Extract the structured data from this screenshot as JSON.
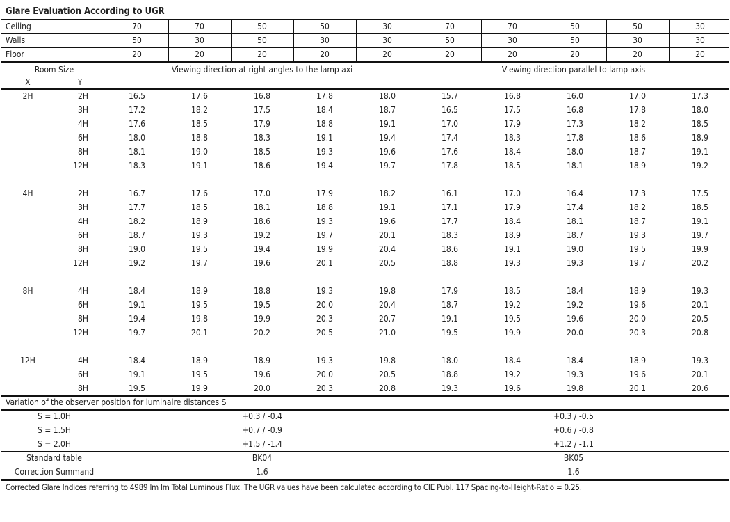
{
  "title": "Glare Evaluation According to UGR",
  "reflectances": {
    "ceiling": {
      "label": "Ceiling",
      "values": [
        "70",
        "70",
        "50",
        "50",
        "30",
        "70",
        "70",
        "50",
        "50",
        "30"
      ]
    },
    "walls": {
      "label": "Walls",
      "values": [
        "50",
        "30",
        "50",
        "30",
        "30",
        "50",
        "30",
        "50",
        "30",
        "30"
      ]
    },
    "floor": {
      "label": "Floor",
      "values": [
        "20",
        "20",
        "20",
        "20",
        "20",
        "20",
        "20",
        "20",
        "20",
        "20"
      ]
    }
  },
  "header": {
    "room_size": "Room Size",
    "x": "X",
    "y": "Y",
    "right_angles": "Viewing direction at right angles to the lamp axi",
    "parallel": "Viewing direction parallel to lamp axis"
  },
  "groups": [
    {
      "x": "2H",
      "rows": [
        {
          "y": "2H",
          "values": [
            "16.5",
            "17.6",
            "16.8",
            "17.8",
            "18.0",
            "15.7",
            "16.8",
            "16.0",
            "17.0",
            "17.3"
          ]
        },
        {
          "y": "3H",
          "values": [
            "17.2",
            "18.2",
            "17.5",
            "18.4",
            "18.7",
            "16.5",
            "17.5",
            "16.8",
            "17.8",
            "18.0"
          ]
        },
        {
          "y": "4H",
          "values": [
            "17.6",
            "18.5",
            "17.9",
            "18.8",
            "19.1",
            "17.0",
            "17.9",
            "17.3",
            "18.2",
            "18.5"
          ]
        },
        {
          "y": "6H",
          "values": [
            "18.0",
            "18.8",
            "18.3",
            "19.1",
            "19.4",
            "17.4",
            "18.3",
            "17.8",
            "18.6",
            "18.9"
          ]
        },
        {
          "y": "8H",
          "values": [
            "18.1",
            "19.0",
            "18.5",
            "19.3",
            "19.6",
            "17.6",
            "18.4",
            "18.0",
            "18.7",
            "19.1"
          ]
        },
        {
          "y": "12H",
          "values": [
            "18.3",
            "19.1",
            "18.6",
            "19.4",
            "19.7",
            "17.8",
            "18.5",
            "18.1",
            "18.9",
            "19.2"
          ]
        }
      ]
    },
    {
      "x": "4H",
      "rows": [
        {
          "y": "2H",
          "values": [
            "16.7",
            "17.6",
            "17.0",
            "17.9",
            "18.2",
            "16.1",
            "17.0",
            "16.4",
            "17.3",
            "17.5"
          ]
        },
        {
          "y": "3H",
          "values": [
            "17.7",
            "18.5",
            "18.1",
            "18.8",
            "19.1",
            "17.1",
            "17.9",
            "17.4",
            "18.2",
            "18.5"
          ]
        },
        {
          "y": "4H",
          "values": [
            "18.2",
            "18.9",
            "18.6",
            "19.3",
            "19.6",
            "17.7",
            "18.4",
            "18.1",
            "18.7",
            "19.1"
          ]
        },
        {
          "y": "6H",
          "values": [
            "18.7",
            "19.3",
            "19.2",
            "19.7",
            "20.1",
            "18.3",
            "18.9",
            "18.7",
            "19.3",
            "19.7"
          ]
        },
        {
          "y": "8H",
          "values": [
            "19.0",
            "19.5",
            "19.4",
            "19.9",
            "20.4",
            "18.6",
            "19.1",
            "19.0",
            "19.5",
            "19.9"
          ]
        },
        {
          "y": "12H",
          "values": [
            "19.2",
            "19.7",
            "19.6",
            "20.1",
            "20.5",
            "18.8",
            "19.3",
            "19.3",
            "19.7",
            "20.2"
          ]
        }
      ]
    },
    {
      "x": "8H",
      "rows": [
        {
          "y": "4H",
          "values": [
            "18.4",
            "18.9",
            "18.8",
            "19.3",
            "19.8",
            "17.9",
            "18.5",
            "18.4",
            "18.9",
            "19.3"
          ]
        },
        {
          "y": "6H",
          "values": [
            "19.1",
            "19.5",
            "19.5",
            "20.0",
            "20.4",
            "18.7",
            "19.2",
            "19.2",
            "19.6",
            "20.1"
          ]
        },
        {
          "y": "8H",
          "values": [
            "19.4",
            "19.8",
            "19.9",
            "20.3",
            "20.7",
            "19.1",
            "19.5",
            "19.6",
            "20.0",
            "20.5"
          ]
        },
        {
          "y": "12H",
          "values": [
            "19.7",
            "20.1",
            "20.2",
            "20.5",
            "21.0",
            "19.5",
            "19.9",
            "20.0",
            "20.3",
            "20.8"
          ]
        }
      ]
    },
    {
      "x": "12H",
      "rows": [
        {
          "y": "4H",
          "values": [
            "18.4",
            "18.9",
            "18.9",
            "19.3",
            "19.8",
            "18.0",
            "18.4",
            "18.4",
            "18.9",
            "19.3"
          ]
        },
        {
          "y": "6H",
          "values": [
            "19.1",
            "19.5",
            "19.6",
            "20.0",
            "20.5",
            "18.8",
            "19.2",
            "19.3",
            "19.6",
            "20.1"
          ]
        },
        {
          "y": "8H",
          "values": [
            "19.5",
            "19.9",
            "20.0",
            "20.3",
            "20.8",
            "19.3",
            "19.6",
            "19.8",
            "20.1",
            "20.6"
          ]
        }
      ]
    }
  ],
  "variation": {
    "label": "Variation of the observer position for luminaire distances S",
    "rows": [
      {
        "s": "S = 1.0H",
        "right": "+0.3 / -0.4",
        "parallel": "+0.3 / -0.5"
      },
      {
        "s": "S = 1.5H",
        "right": "+0.7 / -0.9",
        "parallel": "+0.6 / -0.8"
      },
      {
        "s": "S = 2.0H",
        "right": "+1.5 / -1.4",
        "parallel": "+1.2 / -1.1"
      }
    ]
  },
  "standard_table": {
    "label": "Standard table",
    "right": "BK04",
    "parallel": "BK05"
  },
  "correction_summand": {
    "label": "Correction Summand",
    "right": "1.6",
    "parallel": "1.6"
  },
  "footer": "Corrected Glare Indices referring to 4989 lm lm Total Luminous Flux. The UGR values have been calculated according to CIE Publ. 117    Spacing-to-Height-Ratio = 0.25."
}
